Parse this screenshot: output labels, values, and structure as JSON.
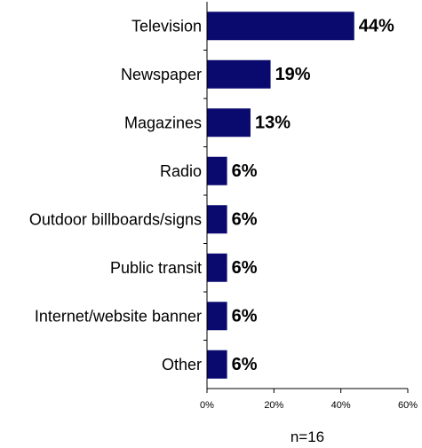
{
  "chart_data": {
    "type": "bar",
    "orientation": "horizontal",
    "categories": [
      "Television",
      "Newspaper",
      "Magazines",
      "Radio",
      "Outdoor billboards/signs",
      "Public transit",
      "Internet/website banner",
      "Other"
    ],
    "values": [
      44,
      19,
      13,
      6,
      6,
      6,
      6,
      6
    ],
    "value_labels": [
      "44%",
      "19%",
      "13%",
      "6%",
      "6%",
      "6%",
      "6%",
      "6%"
    ],
    "xlim": [
      0,
      60
    ],
    "x_ticks": [
      0,
      20,
      40,
      60
    ],
    "x_tick_labels": [
      "0%",
      "20%",
      "40%",
      "60%"
    ],
    "note": "n=16",
    "bar_color": "#0a0a6e",
    "grid": false
  }
}
